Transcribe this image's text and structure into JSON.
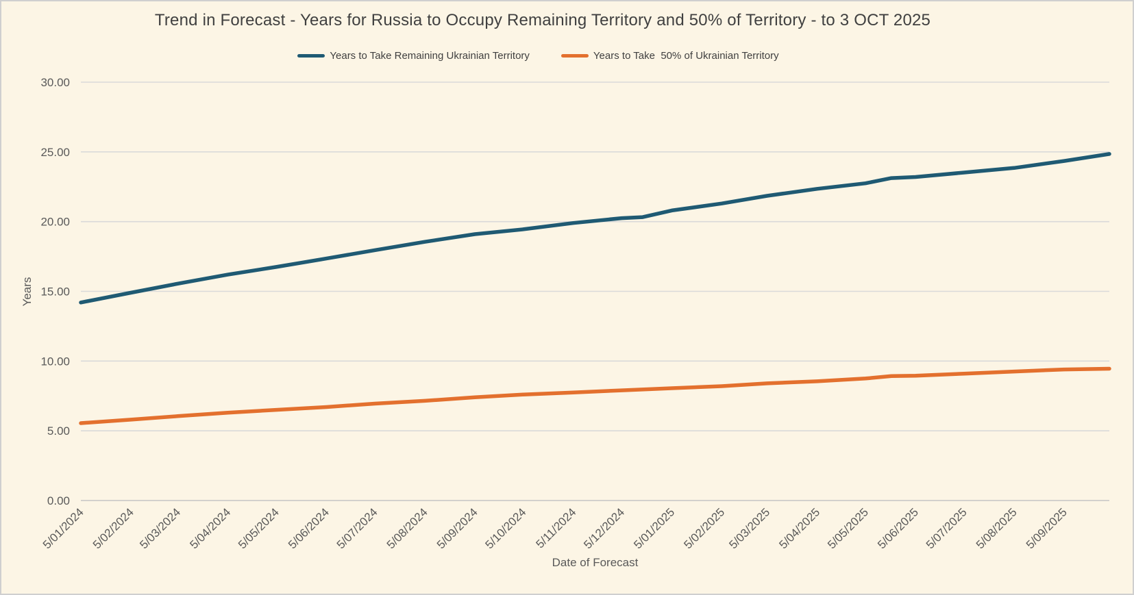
{
  "chart_data": {
    "type": "line",
    "title": "Trend in Forecast - Years for Russia to Occupy Remaining Territory and 50% of Territory - to 3 OCT 2025",
    "xlabel": "Date of Forecast",
    "ylabel": "Years",
    "background_color": "#FCF5E5",
    "gridline_color": "#D9D9D9",
    "axis_line_color": "#C3C3C3",
    "grid": true,
    "legend_position": "top",
    "y_axis": {
      "min": 0,
      "max": 30,
      "step": 5,
      "tick_labels": [
        "0.00",
        "5.00",
        "10.00",
        "15.00",
        "20.00",
        "25.00",
        "30.00"
      ]
    },
    "x_axis": {
      "domain_days": [
        0,
        637
      ],
      "ticks": [
        {
          "label": "5/01/2024",
          "day": 0
        },
        {
          "label": "5/02/2024",
          "day": 31
        },
        {
          "label": "5/03/2024",
          "day": 60
        },
        {
          "label": "5/04/2024",
          "day": 91
        },
        {
          "label": "5/05/2024",
          "day": 121
        },
        {
          "label": "5/06/2024",
          "day": 152
        },
        {
          "label": "5/07/2024",
          "day": 182
        },
        {
          "label": "5/08/2024",
          "day": 213
        },
        {
          "label": "5/09/2024",
          "day": 244
        },
        {
          "label": "5/10/2024",
          "day": 274
        },
        {
          "label": "5/11/2024",
          "day": 305
        },
        {
          "label": "5/12/2024",
          "day": 335
        },
        {
          "label": "5/01/2025",
          "day": 366
        },
        {
          "label": "5/02/2025",
          "day": 397
        },
        {
          "label": "5/03/2025",
          "day": 425
        },
        {
          "label": "5/04/2025",
          "day": 456
        },
        {
          "label": "5/05/2025",
          "day": 486
        },
        {
          "label": "5/06/2025",
          "day": 517
        },
        {
          "label": "5/07/2025",
          "day": 547
        },
        {
          "label": "5/08/2025",
          "day": 578
        },
        {
          "label": "5/09/2025",
          "day": 609
        }
      ]
    },
    "series": [
      {
        "name": "Years to Take Remaining Ukrainian Territory",
        "color": "#1F5A73",
        "points": [
          [
            0,
            14.2
          ],
          [
            31,
            14.9
          ],
          [
            60,
            15.55
          ],
          [
            91,
            16.2
          ],
          [
            121,
            16.75
          ],
          [
            152,
            17.35
          ],
          [
            182,
            17.95
          ],
          [
            213,
            18.55
          ],
          [
            244,
            19.1
          ],
          [
            274,
            19.45
          ],
          [
            305,
            19.9
          ],
          [
            335,
            20.25
          ],
          [
            348,
            20.32
          ],
          [
            366,
            20.8
          ],
          [
            397,
            21.3
          ],
          [
            425,
            21.85
          ],
          [
            456,
            22.35
          ],
          [
            486,
            22.75
          ],
          [
            502,
            23.12
          ],
          [
            517,
            23.2
          ],
          [
            547,
            23.52
          ],
          [
            578,
            23.85
          ],
          [
            609,
            24.35
          ],
          [
            637,
            24.85
          ]
        ]
      },
      {
        "name": "Years to Take  50% of Ukrainian Territory",
        "color": "#E3702E",
        "points": [
          [
            0,
            5.55
          ],
          [
            31,
            5.8
          ],
          [
            60,
            6.05
          ],
          [
            91,
            6.3
          ],
          [
            121,
            6.5
          ],
          [
            152,
            6.7
          ],
          [
            182,
            6.95
          ],
          [
            213,
            7.15
          ],
          [
            244,
            7.4
          ],
          [
            274,
            7.6
          ],
          [
            305,
            7.75
          ],
          [
            335,
            7.9
          ],
          [
            366,
            8.05
          ],
          [
            397,
            8.2
          ],
          [
            425,
            8.4
          ],
          [
            456,
            8.55
          ],
          [
            486,
            8.75
          ],
          [
            502,
            8.92
          ],
          [
            517,
            8.95
          ],
          [
            547,
            9.1
          ],
          [
            578,
            9.25
          ],
          [
            609,
            9.4
          ],
          [
            637,
            9.45
          ]
        ]
      }
    ]
  }
}
